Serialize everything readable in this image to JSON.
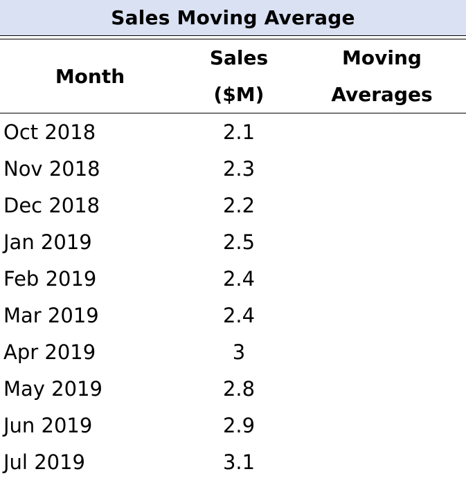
{
  "title": "Sales Moving Average",
  "headers": {
    "month": "Month",
    "sales_line1": "Sales",
    "sales_line2": "($M)",
    "ma_line1": "Moving",
    "ma_line2": "Averages"
  },
  "rows": [
    {
      "month": "Oct 2018",
      "sales": "2.1",
      "moving_average": ""
    },
    {
      "month": "Nov 2018",
      "sales": "2.3",
      "moving_average": ""
    },
    {
      "month": "Dec 2018",
      "sales": "2.2",
      "moving_average": ""
    },
    {
      "month": "Jan 2019",
      "sales": "2.5",
      "moving_average": ""
    },
    {
      "month": "Feb 2019",
      "sales": "2.4",
      "moving_average": ""
    },
    {
      "month": "Mar 2019",
      "sales": "2.4",
      "moving_average": ""
    },
    {
      "month": "Apr 2019",
      "sales": "3",
      "moving_average": ""
    },
    {
      "month": "May 2019",
      "sales": "2.8",
      "moving_average": ""
    },
    {
      "month": "Jun 2019",
      "sales": "2.9",
      "moving_average": ""
    },
    {
      "month": "Jul 2019",
      "sales": "3.1",
      "moving_average": ""
    }
  ],
  "colors": {
    "title_fill": "#d9e1f2",
    "text": "#000000",
    "rule": "#000000"
  }
}
